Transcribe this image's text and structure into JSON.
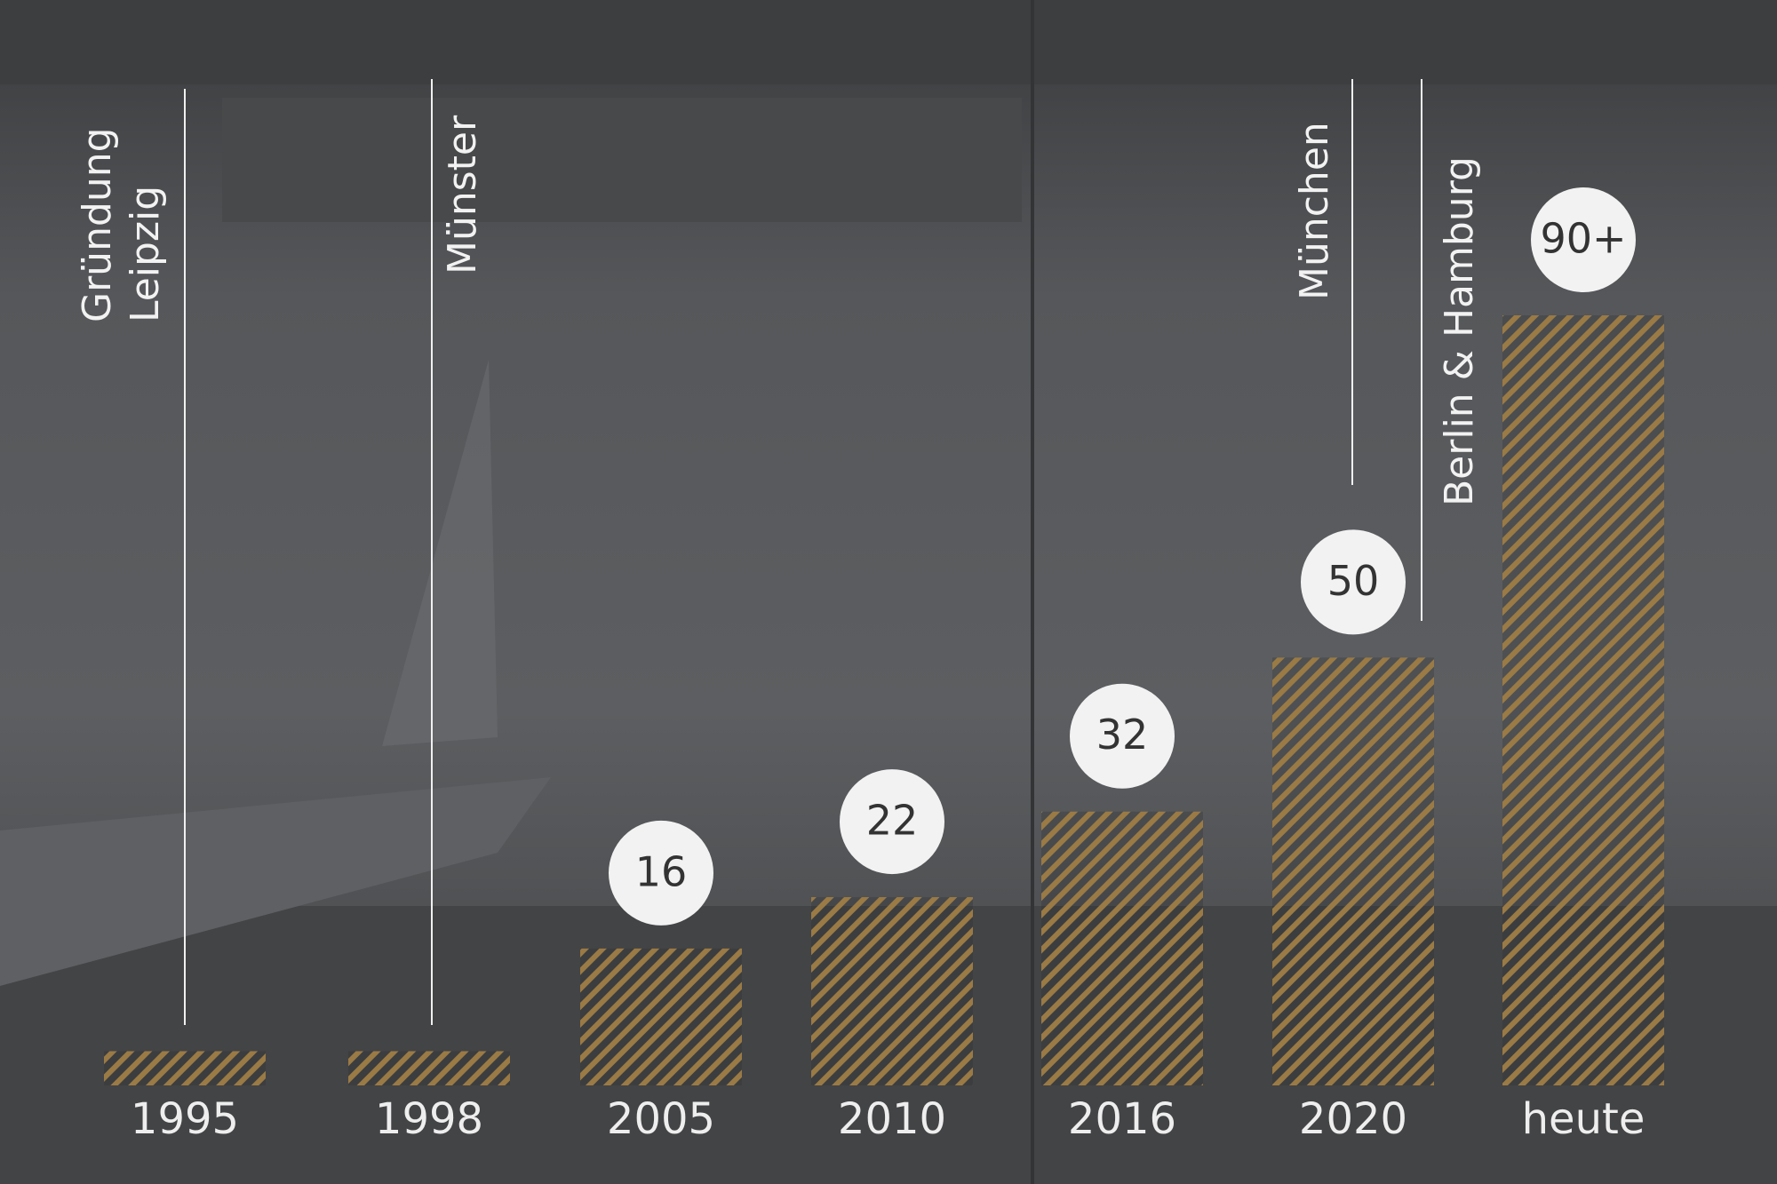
{
  "chart_data": {
    "type": "bar",
    "categories": [
      "1995",
      "1998",
      "2005",
      "2010",
      "2016",
      "2020",
      "heute"
    ],
    "values": [
      4,
      4,
      16,
      22,
      32,
      50,
      90
    ],
    "value_labels": [
      null,
      null,
      "16",
      "22",
      "32",
      "50",
      "90+"
    ],
    "color": "#9a7a45",
    "annotations": [
      [
        "Gründung",
        "Leipzig"
      ],
      [
        "Münster"
      ],
      [
        "München"
      ],
      [
        "Berlin & Hamburg"
      ]
    ]
  }
}
